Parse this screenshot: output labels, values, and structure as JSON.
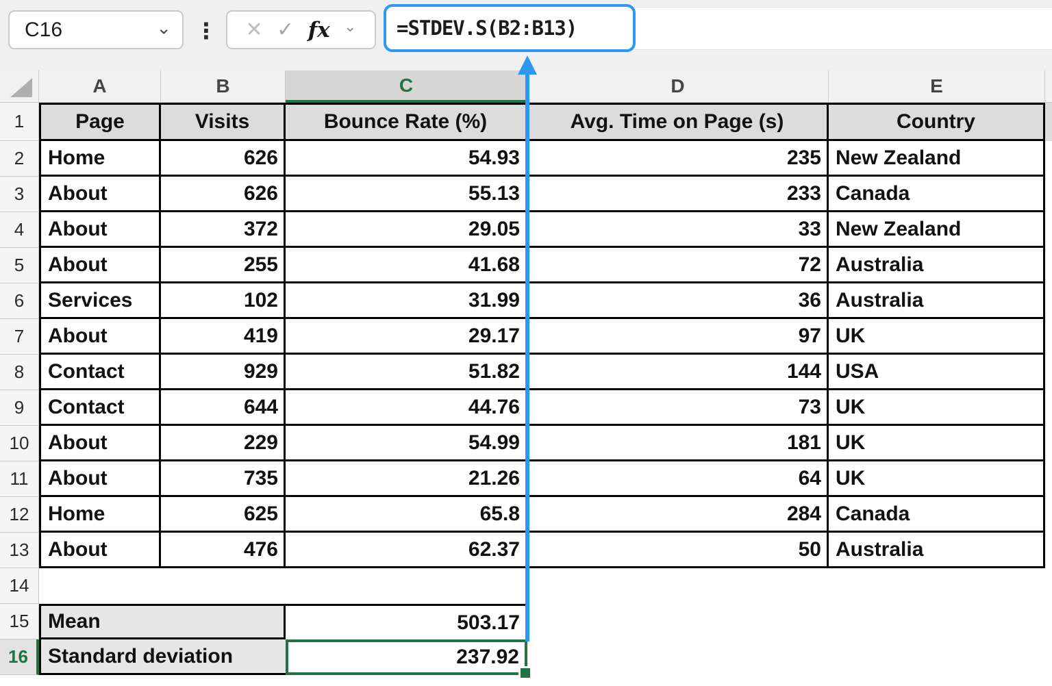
{
  "colors": {
    "accent_blue": "#2b98f3",
    "excel_green": "#217346"
  },
  "formula_bar": {
    "name_box_value": "C16",
    "name_chevron": "⌄",
    "menu_dots": "⋮",
    "cancel_icon": "✕",
    "enter_icon": "✓",
    "fx_icon": "fx",
    "fx_chevron": "⌄",
    "formula": "=STDEV.S(B2:B13)"
  },
  "grid": {
    "column_letters": [
      "A",
      "B",
      "C",
      "D",
      "E"
    ],
    "selected_column": "C",
    "row_numbers": [
      "1",
      "2",
      "3",
      "4",
      "5",
      "6",
      "7",
      "8",
      "9",
      "10",
      "11",
      "12",
      "13",
      "14",
      "15",
      "16"
    ],
    "selected_row": "16",
    "selected_cell": "C16"
  },
  "table": {
    "headers": [
      "Page",
      "Visits",
      "Bounce Rate (%)",
      "Avg. Time on Page (s)",
      "Country"
    ],
    "rows": [
      [
        "Home",
        "626",
        "54.93",
        "235",
        "New Zealand"
      ],
      [
        "About",
        "626",
        "55.13",
        "233",
        "Canada"
      ],
      [
        "About",
        "372",
        "29.05",
        "33",
        "New Zealand"
      ],
      [
        "About",
        "255",
        "41.68",
        "72",
        "Australia"
      ],
      [
        "Services",
        "102",
        "31.99",
        "36",
        "Australia"
      ],
      [
        "About",
        "419",
        "29.17",
        "97",
        "UK"
      ],
      [
        "Contact",
        "929",
        "51.82",
        "144",
        "USA"
      ],
      [
        "Contact",
        "644",
        "44.76",
        "73",
        "UK"
      ],
      [
        "About",
        "229",
        "54.99",
        "181",
        "UK"
      ],
      [
        "About",
        "735",
        "21.26",
        "64",
        "UK"
      ],
      [
        "Home",
        "625",
        "65.8",
        "284",
        "Canada"
      ],
      [
        "About",
        "476",
        "62.37",
        "50",
        "Australia"
      ]
    ]
  },
  "summary": {
    "rows": [
      {
        "label": "Mean",
        "value": "503.17"
      },
      {
        "label": "Standard deviation",
        "value": "237.92"
      }
    ]
  }
}
